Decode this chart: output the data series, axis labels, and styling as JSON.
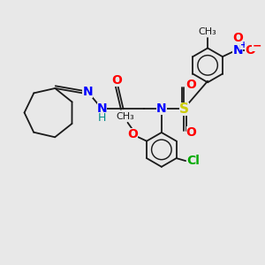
{
  "background_color": "#e8e8e8",
  "bond_color": "#1a1a1a",
  "N_color": "#0000ff",
  "O_color": "#ff0000",
  "S_color": "#cccc00",
  "Cl_color": "#00aa00",
  "H_color": "#008888",
  "font_size": 8,
  "dpi": 100,
  "figsize": [
    3.0,
    3.0
  ],
  "xlim": [
    0,
    10
  ],
  "ylim": [
    0,
    10
  ]
}
